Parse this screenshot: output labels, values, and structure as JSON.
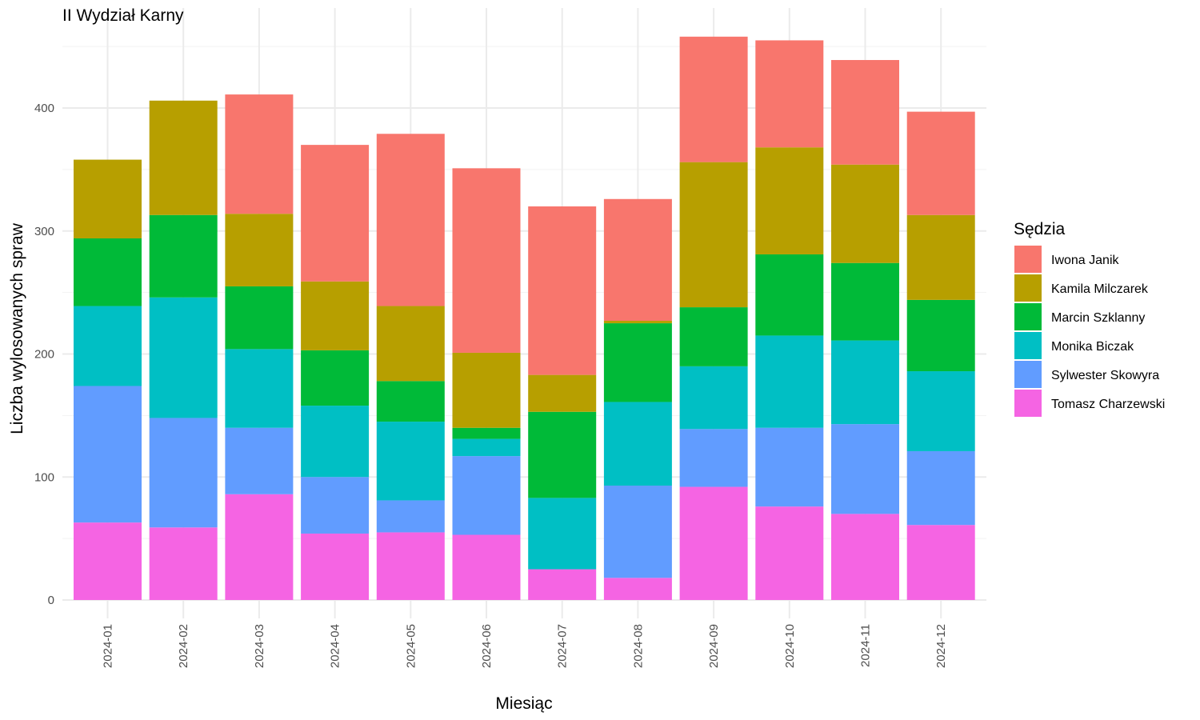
{
  "chart_data": {
    "type": "bar",
    "stacked": true,
    "title": "II Wydział Karny",
    "xlabel": "Miesiąc",
    "ylabel": "Liczba wylosowanych spraw",
    "ylim": [
      0,
      480
    ],
    "yticks": [
      0,
      100,
      200,
      300,
      400
    ],
    "grid": true,
    "legend_title": "Sędzia",
    "legend_position": "right",
    "categories": [
      "2024-01",
      "2024-02",
      "2024-03",
      "2024-04",
      "2024-05",
      "2024-06",
      "2024-07",
      "2024-08",
      "2024-09",
      "2024-10",
      "2024-11",
      "2024-12"
    ],
    "series": [
      {
        "name": "Tomasz Charzewski",
        "color": "#F564E3",
        "values": [
          63,
          59,
          86,
          54,
          55,
          53,
          25,
          18,
          92,
          76,
          70,
          61
        ]
      },
      {
        "name": "Sylwester Skowyra",
        "color": "#619CFF",
        "values": [
          111,
          89,
          54,
          46,
          26,
          64,
          0,
          75,
          47,
          64,
          73,
          60
        ]
      },
      {
        "name": "Monika Biczak",
        "color": "#00BFC4",
        "values": [
          65,
          98,
          64,
          58,
          64,
          14,
          58,
          68,
          51,
          75,
          68,
          65
        ]
      },
      {
        "name": "Marcin Szklanny",
        "color": "#00BA38",
        "values": [
          55,
          67,
          51,
          45,
          33,
          9,
          70,
          64,
          48,
          66,
          63,
          58
        ]
      },
      {
        "name": "Kamila Milczarek",
        "color": "#B79F00",
        "values": [
          64,
          93,
          59,
          56,
          61,
          61,
          30,
          2,
          118,
          87,
          80,
          69
        ]
      },
      {
        "name": "Iwona Janik",
        "color": "#F8766D",
        "values": [
          0,
          0,
          97,
          111,
          140,
          150,
          137,
          99,
          102,
          87,
          85,
          84
        ]
      }
    ],
    "legend_order": [
      "Iwona Janik",
      "Kamila Milczarek",
      "Marcin Szklanny",
      "Monika Biczak",
      "Sylwester Skowyra",
      "Tomasz Charzewski"
    ]
  }
}
